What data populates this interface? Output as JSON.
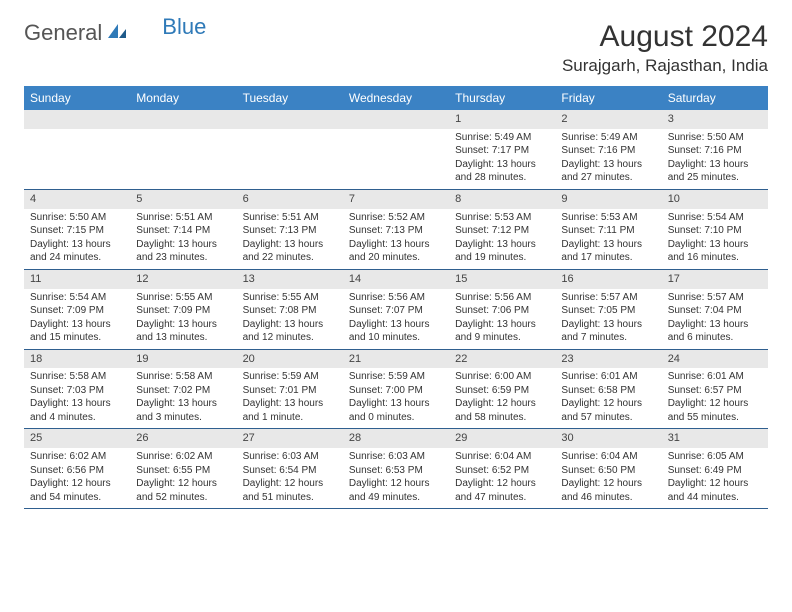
{
  "logo": {
    "general": "General",
    "blue": "Blue"
  },
  "title": "August 2024",
  "location": "Surajgarh, Rajasthan, India",
  "brand_color": "#3b82c4",
  "divider_color": "#2f5f8f",
  "daynum_bg": "#e8e8e8",
  "weekdays": [
    "Sunday",
    "Monday",
    "Tuesday",
    "Wednesday",
    "Thursday",
    "Friday",
    "Saturday"
  ],
  "weeks": [
    [
      null,
      null,
      null,
      null,
      {
        "n": "1",
        "sr": "5:49 AM",
        "ss": "7:17 PM",
        "dl": "13 hours and 28 minutes."
      },
      {
        "n": "2",
        "sr": "5:49 AM",
        "ss": "7:16 PM",
        "dl": "13 hours and 27 minutes."
      },
      {
        "n": "3",
        "sr": "5:50 AM",
        "ss": "7:16 PM",
        "dl": "13 hours and 25 minutes."
      }
    ],
    [
      {
        "n": "4",
        "sr": "5:50 AM",
        "ss": "7:15 PM",
        "dl": "13 hours and 24 minutes."
      },
      {
        "n": "5",
        "sr": "5:51 AM",
        "ss": "7:14 PM",
        "dl": "13 hours and 23 minutes."
      },
      {
        "n": "6",
        "sr": "5:51 AM",
        "ss": "7:13 PM",
        "dl": "13 hours and 22 minutes."
      },
      {
        "n": "7",
        "sr": "5:52 AM",
        "ss": "7:13 PM",
        "dl": "13 hours and 20 minutes."
      },
      {
        "n": "8",
        "sr": "5:53 AM",
        "ss": "7:12 PM",
        "dl": "13 hours and 19 minutes."
      },
      {
        "n": "9",
        "sr": "5:53 AM",
        "ss": "7:11 PM",
        "dl": "13 hours and 17 minutes."
      },
      {
        "n": "10",
        "sr": "5:54 AM",
        "ss": "7:10 PM",
        "dl": "13 hours and 16 minutes."
      }
    ],
    [
      {
        "n": "11",
        "sr": "5:54 AM",
        "ss": "7:09 PM",
        "dl": "13 hours and 15 minutes."
      },
      {
        "n": "12",
        "sr": "5:55 AM",
        "ss": "7:09 PM",
        "dl": "13 hours and 13 minutes."
      },
      {
        "n": "13",
        "sr": "5:55 AM",
        "ss": "7:08 PM",
        "dl": "13 hours and 12 minutes."
      },
      {
        "n": "14",
        "sr": "5:56 AM",
        "ss": "7:07 PM",
        "dl": "13 hours and 10 minutes."
      },
      {
        "n": "15",
        "sr": "5:56 AM",
        "ss": "7:06 PM",
        "dl": "13 hours and 9 minutes."
      },
      {
        "n": "16",
        "sr": "5:57 AM",
        "ss": "7:05 PM",
        "dl": "13 hours and 7 minutes."
      },
      {
        "n": "17",
        "sr": "5:57 AM",
        "ss": "7:04 PM",
        "dl": "13 hours and 6 minutes."
      }
    ],
    [
      {
        "n": "18",
        "sr": "5:58 AM",
        "ss": "7:03 PM",
        "dl": "13 hours and 4 minutes."
      },
      {
        "n": "19",
        "sr": "5:58 AM",
        "ss": "7:02 PM",
        "dl": "13 hours and 3 minutes."
      },
      {
        "n": "20",
        "sr": "5:59 AM",
        "ss": "7:01 PM",
        "dl": "13 hours and 1 minute."
      },
      {
        "n": "21",
        "sr": "5:59 AM",
        "ss": "7:00 PM",
        "dl": "13 hours and 0 minutes."
      },
      {
        "n": "22",
        "sr": "6:00 AM",
        "ss": "6:59 PM",
        "dl": "12 hours and 58 minutes."
      },
      {
        "n": "23",
        "sr": "6:01 AM",
        "ss": "6:58 PM",
        "dl": "12 hours and 57 minutes."
      },
      {
        "n": "24",
        "sr": "6:01 AM",
        "ss": "6:57 PM",
        "dl": "12 hours and 55 minutes."
      }
    ],
    [
      {
        "n": "25",
        "sr": "6:02 AM",
        "ss": "6:56 PM",
        "dl": "12 hours and 54 minutes."
      },
      {
        "n": "26",
        "sr": "6:02 AM",
        "ss": "6:55 PM",
        "dl": "12 hours and 52 minutes."
      },
      {
        "n": "27",
        "sr": "6:03 AM",
        "ss": "6:54 PM",
        "dl": "12 hours and 51 minutes."
      },
      {
        "n": "28",
        "sr": "6:03 AM",
        "ss": "6:53 PM",
        "dl": "12 hours and 49 minutes."
      },
      {
        "n": "29",
        "sr": "6:04 AM",
        "ss": "6:52 PM",
        "dl": "12 hours and 47 minutes."
      },
      {
        "n": "30",
        "sr": "6:04 AM",
        "ss": "6:50 PM",
        "dl": "12 hours and 46 minutes."
      },
      {
        "n": "31",
        "sr": "6:05 AM",
        "ss": "6:49 PM",
        "dl": "12 hours and 44 minutes."
      }
    ]
  ],
  "labels": {
    "sunrise": "Sunrise: ",
    "sunset": "Sunset: ",
    "daylight": "Daylight: "
  }
}
